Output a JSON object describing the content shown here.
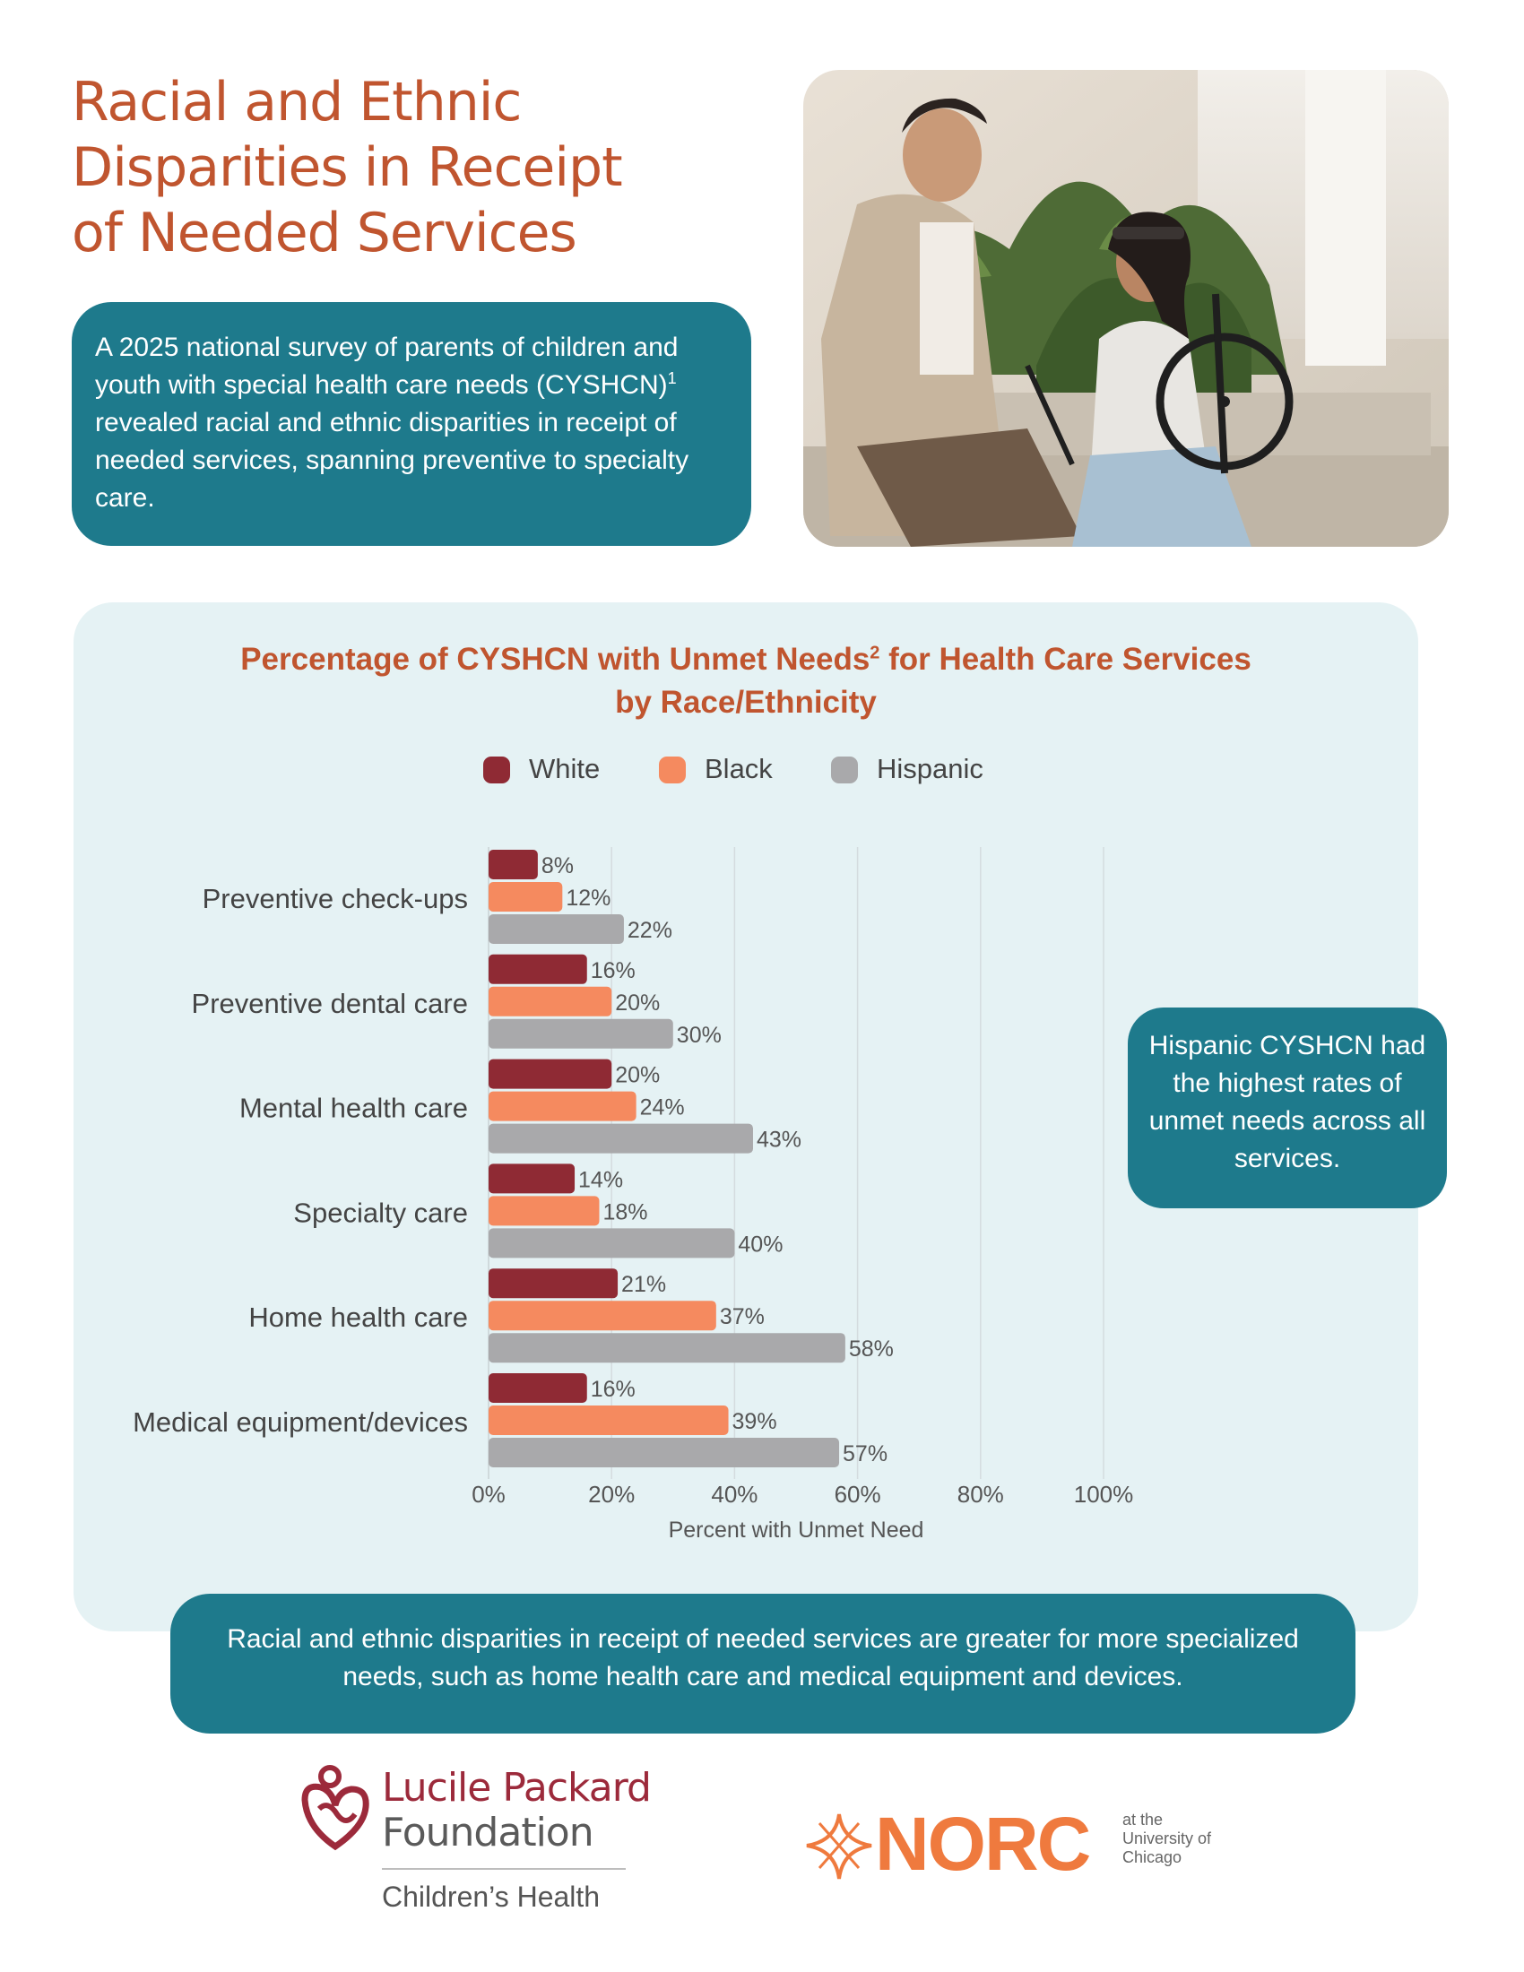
{
  "header": {
    "title_line1": "Racial and Ethnic",
    "title_line2": "Disparities in Receipt",
    "title_line3": "of Needed Services"
  },
  "intro": {
    "text_before_sup": "A 2025 national survey of parents of children and youth with special health care needs (CYSHCN)",
    "footnote_mark": "1",
    "text_after_sup": " revealed racial and ethnic disparities in receipt of needed services, spanning preventive to specialty care."
  },
  "chart_header": {
    "title_part1": "Percentage of CYSHCN with Unmet Needs",
    "footnote_mark": "2",
    "title_part2": " for Health Care Services",
    "title_line2": "by Race/Ethnicity"
  },
  "chart_data": {
    "type": "bar",
    "orientation": "horizontal",
    "categories": [
      "Preventive check-ups",
      "Preventive dental care",
      "Mental health care",
      "Specialty care",
      "Home health care",
      "Medical equipment/devices"
    ],
    "series": [
      {
        "name": "White",
        "color": "#8f2a34",
        "values": [
          8,
          16,
          20,
          14,
          21,
          16
        ]
      },
      {
        "name": "Black",
        "color": "#f58a5f",
        "values": [
          12,
          20,
          24,
          18,
          37,
          39
        ]
      },
      {
        "name": "Hispanic",
        "color": "#a9a9ab",
        "values": [
          22,
          30,
          43,
          40,
          58,
          57
        ]
      }
    ],
    "value_suffix": "%",
    "xlabel": "Percent with Unmet Need",
    "xlim": [
      0,
      100
    ],
    "xticks": [
      0,
      20,
      40,
      60,
      80,
      100
    ],
    "xtick_labels": [
      "0%",
      "20%",
      "40%",
      "60%",
      "80%",
      "100%"
    ],
    "grid": true,
    "legend_position": "top"
  },
  "callout": {
    "text": "Hispanic CYSHCN had the highest rates of unmet needs across all services."
  },
  "bottom_note": {
    "text": "Racial and ethnic disparities in receipt of needed services are greater for more specialized needs, such as home health care and medical equipment and devices."
  },
  "logos": {
    "lpf_line1": "Lucile Packard",
    "lpf_line2": "Foundation",
    "lpf_sub": "Children’s Health",
    "norc_word": "NORC",
    "norc_aff_line1": "at the",
    "norc_aff_line2": "University of",
    "norc_aff_line3": "Chicago"
  },
  "colors": {
    "accent_orange": "#c0552f",
    "teal": "#1e7a8c",
    "panel_bg": "#e5f2f4",
    "lpf_red": "#9c2a3b",
    "norc_orange": "#ef7a3e"
  },
  "icons": [
    "photo-image",
    "lpf-heart-icon",
    "norc-star-icon"
  ]
}
